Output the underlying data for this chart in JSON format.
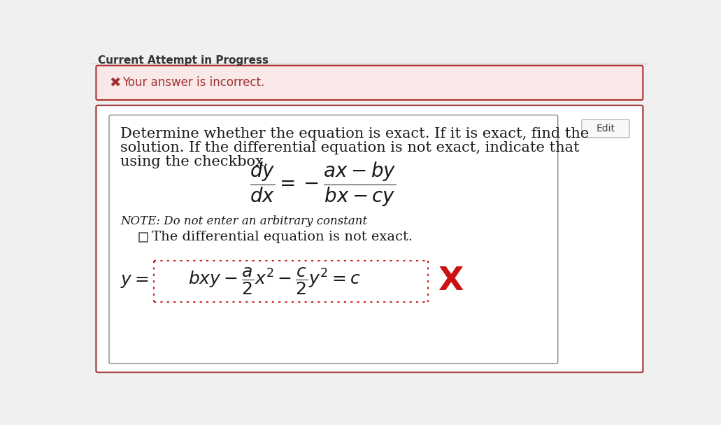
{
  "page_bg": "#f0f0f0",
  "header_text": "Current Attempt in Progress",
  "header_color": "#333333",
  "header_font_size": 11,
  "sep_line_color": "#cccccc",
  "error_box_bg": "#f9e8e8",
  "error_box_border": "#b03030",
  "error_icon": "✖",
  "error_text": "Your answer is incorrect.",
  "error_text_color": "#a03030",
  "outer_box_bg": "#ffffff",
  "outer_box_border": "#a03030",
  "inner_box_bg": "#ffffff",
  "inner_box_border": "#888888",
  "edit_btn_text": "Edit",
  "edit_btn_border": "#aaaaaa",
  "edit_btn_bg": "#f8f8f8",
  "problem_line1": "Determine whether the equation is exact. If it is exact, find the",
  "problem_line2": "solution. If the differential equation is not exact, indicate that",
  "problem_line3": "using the checkbox.",
  "note_text": "NOTE: Do not enter an arbitrary constant",
  "checkbox_label": "The differential equation is not exact.",
  "answer_left_label": "y =",
  "answer_formula": "bxy - \\dfrac{a}{2}x^2 - \\dfrac{c}{2}y^2 = c",
  "answer_box_border": "#cc2222",
  "wrong_mark": "X",
  "wrong_mark_color": "#cc1111",
  "font_color": "#1a1a1a",
  "problem_font_size": 15,
  "note_font_size": 12,
  "checkbox_font_size": 14,
  "equation_font_size": 20,
  "answer_font_size": 18,
  "wrong_mark_font_size": 34
}
